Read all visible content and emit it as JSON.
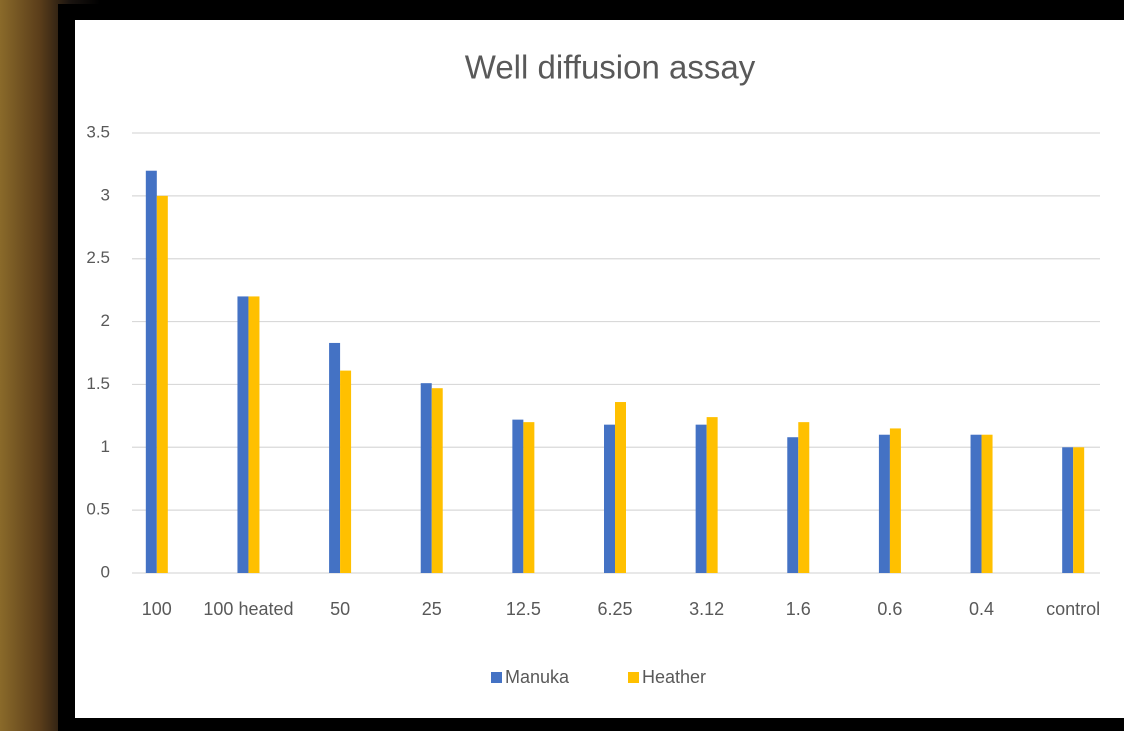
{
  "chart_data": {
    "type": "bar",
    "title": "Well diffusion assay",
    "categories": [
      "100",
      "100 heated",
      "50",
      "25",
      "12.5",
      "6.25",
      "3.12",
      "1.6",
      "0.6",
      "0.4",
      "control"
    ],
    "series": [
      {
        "name": "Manuka",
        "color": "#4472c4",
        "values": [
          3.2,
          2.2,
          1.83,
          1.51,
          1.22,
          1.18,
          1.18,
          1.08,
          1.1,
          1.1,
          1.0
        ]
      },
      {
        "name": "Heather",
        "color": "#ffc000",
        "values": [
          3.0,
          2.2,
          1.61,
          1.47,
          1.2,
          1.36,
          1.24,
          1.2,
          1.15,
          1.1,
          1.0
        ]
      }
    ],
    "ylim": [
      0,
      3.5
    ],
    "yticks": [
      0,
      0.5,
      1,
      1.5,
      2,
      2.5,
      3,
      3.5
    ],
    "grid": true,
    "legend": "bottom"
  }
}
